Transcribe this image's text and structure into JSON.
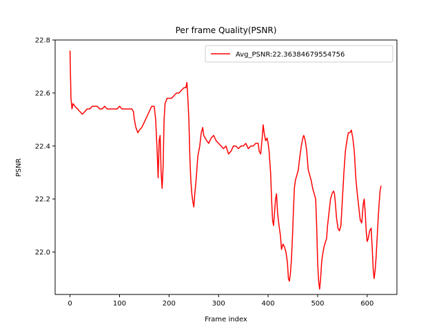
{
  "chart_data": {
    "type": "line",
    "title": "Per frame Quality(PSNR)",
    "xlabel": "Frame index",
    "ylabel": "PSNR",
    "xlim": [
      -30,
      660
    ],
    "ylim": [
      21.84,
      22.8
    ],
    "xticks": [
      0,
      100,
      200,
      300,
      400,
      500,
      600
    ],
    "yticks": [
      22.0,
      22.2,
      22.4,
      22.6,
      22.8
    ],
    "xtick_labels": [
      "0",
      "100",
      "200",
      "300",
      "400",
      "500",
      "600"
    ],
    "ytick_labels": [
      "22.0",
      "22.2",
      "22.4",
      "22.6",
      "22.8"
    ],
    "grid": false,
    "legend_position": "top-right",
    "series": [
      {
        "name": "Avg_PSNR:22.36384679554756",
        "color": "#ff0000",
        "points": [
          [
            0,
            22.76
          ],
          [
            2,
            22.58
          ],
          [
            4,
            22.54
          ],
          [
            6,
            22.56
          ],
          [
            10,
            22.55
          ],
          [
            15,
            22.54
          ],
          [
            20,
            22.53
          ],
          [
            25,
            22.52
          ],
          [
            30,
            22.53
          ],
          [
            35,
            22.54
          ],
          [
            40,
            22.54
          ],
          [
            45,
            22.55
          ],
          [
            50,
            22.55
          ],
          [
            55,
            22.55
          ],
          [
            60,
            22.54
          ],
          [
            65,
            22.54
          ],
          [
            70,
            22.55
          ],
          [
            75,
            22.54
          ],
          [
            80,
            22.54
          ],
          [
            85,
            22.54
          ],
          [
            90,
            22.54
          ],
          [
            95,
            22.54
          ],
          [
            100,
            22.55
          ],
          [
            105,
            22.54
          ],
          [
            110,
            22.54
          ],
          [
            115,
            22.54
          ],
          [
            120,
            22.54
          ],
          [
            125,
            22.54
          ],
          [
            128,
            22.53
          ],
          [
            130,
            22.5
          ],
          [
            133,
            22.47
          ],
          [
            137,
            22.45
          ],
          [
            140,
            22.46
          ],
          [
            145,
            22.47
          ],
          [
            150,
            22.49
          ],
          [
            155,
            22.51
          ],
          [
            160,
            22.53
          ],
          [
            165,
            22.55
          ],
          [
            170,
            22.55
          ],
          [
            173,
            22.5
          ],
          [
            176,
            22.38
          ],
          [
            178,
            22.28
          ],
          [
            180,
            22.42
          ],
          [
            182,
            22.44
          ],
          [
            184,
            22.3
          ],
          [
            186,
            22.24
          ],
          [
            188,
            22.32
          ],
          [
            190,
            22.5
          ],
          [
            192,
            22.56
          ],
          [
            196,
            22.58
          ],
          [
            200,
            22.58
          ],
          [
            205,
            22.58
          ],
          [
            210,
            22.59
          ],
          [
            215,
            22.6
          ],
          [
            220,
            22.6
          ],
          [
            225,
            22.61
          ],
          [
            230,
            22.62
          ],
          [
            234,
            22.62
          ],
          [
            236,
            22.64
          ],
          [
            238,
            22.58
          ],
          [
            240,
            22.5
          ],
          [
            242,
            22.36
          ],
          [
            244,
            22.27
          ],
          [
            246,
            22.22
          ],
          [
            248,
            22.19
          ],
          [
            250,
            22.17
          ],
          [
            252,
            22.22
          ],
          [
            255,
            22.28
          ],
          [
            258,
            22.36
          ],
          [
            262,
            22.4
          ],
          [
            265,
            22.45
          ],
          [
            268,
            22.47
          ],
          [
            270,
            22.44
          ],
          [
            273,
            22.43
          ],
          [
            276,
            22.42
          ],
          [
            280,
            22.41
          ],
          [
            285,
            22.43
          ],
          [
            290,
            22.44
          ],
          [
            295,
            22.42
          ],
          [
            300,
            22.41
          ],
          [
            305,
            22.4
          ],
          [
            310,
            22.39
          ],
          [
            315,
            22.4
          ],
          [
            320,
            22.37
          ],
          [
            325,
            22.38
          ],
          [
            330,
            22.4
          ],
          [
            335,
            22.4
          ],
          [
            340,
            22.39
          ],
          [
            345,
            22.4
          ],
          [
            350,
            22.4
          ],
          [
            355,
            22.41
          ],
          [
            360,
            22.39
          ],
          [
            365,
            22.4
          ],
          [
            370,
            22.4
          ],
          [
            375,
            22.41
          ],
          [
            380,
            22.41
          ],
          [
            382,
            22.38
          ],
          [
            385,
            22.37
          ],
          [
            388,
            22.43
          ],
          [
            390,
            22.48
          ],
          [
            392,
            22.45
          ],
          [
            395,
            22.42
          ],
          [
            398,
            22.43
          ],
          [
            400,
            22.41
          ],
          [
            402,
            22.38
          ],
          [
            405,
            22.3
          ],
          [
            407,
            22.2
          ],
          [
            409,
            22.12
          ],
          [
            411,
            22.1
          ],
          [
            413,
            22.15
          ],
          [
            415,
            22.2
          ],
          [
            417,
            22.22
          ],
          [
            419,
            22.15
          ],
          [
            422,
            22.1
          ],
          [
            425,
            22.06
          ],
          [
            427,
            22.01
          ],
          [
            430,
            22.03
          ],
          [
            433,
            22.02
          ],
          [
            436,
            22.0
          ],
          [
            439,
            21.96
          ],
          [
            441,
            21.9
          ],
          [
            443,
            21.89
          ],
          [
            445,
            21.92
          ],
          [
            447,
            21.97
          ],
          [
            449,
            22.05
          ],
          [
            451,
            22.15
          ],
          [
            453,
            22.24
          ],
          [
            455,
            22.27
          ],
          [
            458,
            22.29
          ],
          [
            461,
            22.31
          ],
          [
            464,
            22.36
          ],
          [
            467,
            22.4
          ],
          [
            470,
            22.43
          ],
          [
            472,
            22.44
          ],
          [
            475,
            22.42
          ],
          [
            478,
            22.38
          ],
          [
            481,
            22.31
          ],
          [
            484,
            22.29
          ],
          [
            487,
            22.27
          ],
          [
            490,
            22.24
          ],
          [
            493,
            22.22
          ],
          [
            496,
            22.2
          ],
          [
            498,
            22.1
          ],
          [
            500,
            21.96
          ],
          [
            502,
            21.89
          ],
          [
            504,
            21.86
          ],
          [
            506,
            21.9
          ],
          [
            508,
            21.96
          ],
          [
            510,
            21.99
          ],
          [
            513,
            22.02
          ],
          [
            516,
            22.04
          ],
          [
            518,
            22.05
          ],
          [
            520,
            22.1
          ],
          [
            523,
            22.15
          ],
          [
            526,
            22.2
          ],
          [
            529,
            22.22
          ],
          [
            532,
            22.23
          ],
          [
            534,
            22.22
          ],
          [
            536,
            22.18
          ],
          [
            538,
            22.13
          ],
          [
            541,
            22.09
          ],
          [
            544,
            22.08
          ],
          [
            547,
            22.1
          ],
          [
            550,
            22.2
          ],
          [
            553,
            22.3
          ],
          [
            556,
            22.38
          ],
          [
            559,
            22.42
          ],
          [
            562,
            22.45
          ],
          [
            565,
            22.45
          ],
          [
            568,
            22.46
          ],
          [
            571,
            22.43
          ],
          [
            574,
            22.38
          ],
          [
            577,
            22.28
          ],
          [
            580,
            22.22
          ],
          [
            583,
            22.17
          ],
          [
            586,
            22.12
          ],
          [
            589,
            22.11
          ],
          [
            592,
            22.18
          ],
          [
            594,
            22.2
          ],
          [
            596,
            22.15
          ],
          [
            598,
            22.08
          ],
          [
            600,
            22.04
          ],
          [
            602,
            22.05
          ],
          [
            605,
            22.08
          ],
          [
            608,
            22.09
          ],
          [
            610,
            22.02
          ],
          [
            612,
            21.94
          ],
          [
            614,
            21.9
          ],
          [
            616,
            21.93
          ],
          [
            618,
            21.98
          ],
          [
            620,
            22.05
          ],
          [
            622,
            22.12
          ],
          [
            624,
            22.18
          ],
          [
            626,
            22.23
          ],
          [
            628,
            22.25
          ]
        ]
      }
    ]
  }
}
